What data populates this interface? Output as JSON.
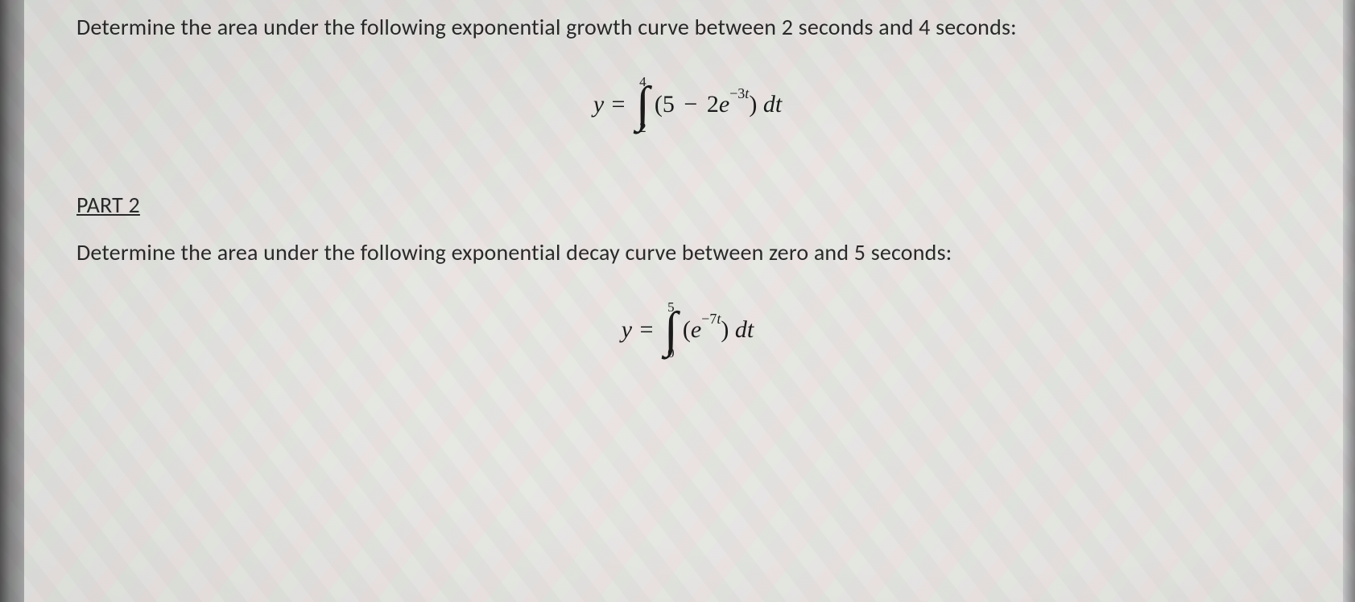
{
  "part1": {
    "prompt": "Determine the area under the following exponential growth curve between 2 seconds and 4 seconds:",
    "equation": {
      "lhs": "y =",
      "upper_limit": "4",
      "lower_limit": "2",
      "integrand_open": "(5",
      "integrand_minus": " − ",
      "integrand_coef": "2",
      "integrand_e": "e",
      "integrand_exp": "−3",
      "integrand_exp_var": "t",
      "integrand_close": ")",
      "dt": " dt"
    }
  },
  "part2": {
    "heading": "PART 2",
    "prompt": "Determine the area under the following exponential decay curve between zero and 5 seconds:",
    "equation": {
      "lhs": "y =",
      "upper_limit": "5",
      "lower_limit": "0",
      "integrand_open": "(",
      "integrand_e": "e",
      "integrand_exp": "−7",
      "integrand_exp_var": "t",
      "integrand_close": ")",
      "dt": " dt"
    }
  },
  "style": {
    "body_font_size_pt": 21,
    "equation_font_size_pt": 22,
    "text_color": "#2a2a2a",
    "equation_color": "#1a1a1a",
    "background_color": "#e8e8e4",
    "font_family_body": "Calibri",
    "font_family_math": "Cambria Math"
  }
}
